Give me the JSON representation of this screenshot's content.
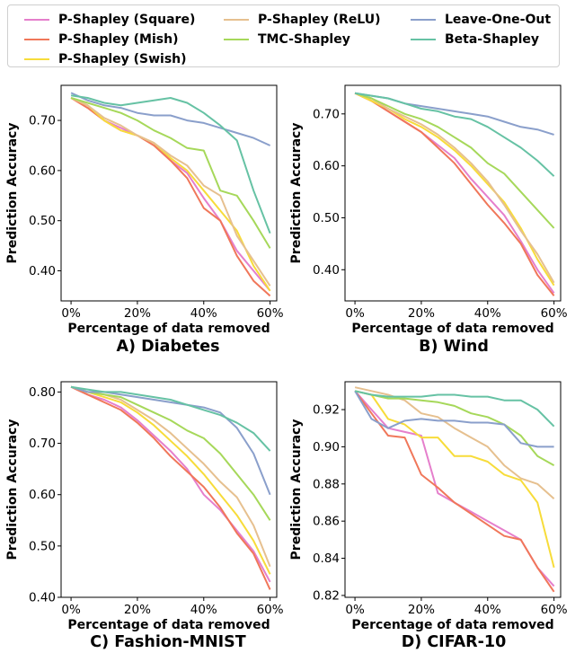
{
  "legend": [
    {
      "name": "P-Shapley (Square)",
      "color": "#e57fcc"
    },
    {
      "name": "P-Shapley (Mish)",
      "color": "#f0775a"
    },
    {
      "name": "P-Shapley (Swish)",
      "color": "#f7dc3a"
    },
    {
      "name": "P-Shapley (ReLU)",
      "color": "#e6c08f"
    },
    {
      "name": "TMC-Shapley",
      "color": "#a6d85a"
    },
    {
      "name": "Leave-One-Out",
      "color": "#8a9fcb"
    },
    {
      "name": "Beta-Shapley",
      "color": "#66c2a4"
    }
  ],
  "captions": [
    "A) Diabetes",
    "B) Wind",
    "C) Fashion-MNIST",
    "D) CIFAR-10"
  ],
  "chart_data": [
    {
      "type": "line",
      "title": "",
      "xlabel": "Percentage of data removed",
      "ylabel": "Prediction Accuracy",
      "x": [
        0,
        5,
        10,
        15,
        20,
        25,
        30,
        35,
        40,
        45,
        50,
        55,
        60
      ],
      "xticks": [
        "0%",
        "20%",
        "40%",
        "60%"
      ],
      "xtick_values": [
        0,
        20,
        40,
        60
      ],
      "yticks": [
        "0.40",
        "0.50",
        "0.60",
        "0.70"
      ],
      "ytick_values": [
        0.4,
        0.5,
        0.6,
        0.7
      ],
      "xlim": [
        -3,
        62
      ],
      "ylim": [
        0.34,
        0.77
      ],
      "series": [
        {
          "name": "P-Shapley (Square)",
          "values": [
            0.745,
            0.73,
            0.7,
            0.685,
            0.67,
            0.655,
            0.62,
            0.595,
            0.545,
            0.5,
            0.44,
            0.4,
            0.36
          ]
        },
        {
          "name": "P-Shapley (Mish)",
          "values": [
            0.745,
            0.725,
            0.7,
            0.68,
            0.67,
            0.65,
            0.62,
            0.585,
            0.525,
            0.5,
            0.43,
            0.38,
            0.35
          ]
        },
        {
          "name": "P-Shapley (Swish)",
          "values": [
            0.745,
            0.73,
            0.7,
            0.68,
            0.67,
            0.655,
            0.625,
            0.6,
            0.56,
            0.52,
            0.48,
            0.41,
            0.36
          ]
        },
        {
          "name": "P-Shapley (ReLU)",
          "values": [
            0.745,
            0.73,
            0.705,
            0.69,
            0.67,
            0.655,
            0.63,
            0.61,
            0.57,
            0.55,
            0.47,
            0.42,
            0.37
          ]
        },
        {
          "name": "TMC-Shapley",
          "values": [
            0.745,
            0.735,
            0.725,
            0.715,
            0.7,
            0.68,
            0.665,
            0.645,
            0.64,
            0.56,
            0.55,
            0.5,
            0.445
          ]
        },
        {
          "name": "Leave-One-Out",
          "values": [
            0.755,
            0.74,
            0.73,
            0.725,
            0.715,
            0.71,
            0.71,
            0.7,
            0.695,
            0.685,
            0.675,
            0.665,
            0.65
          ]
        },
        {
          "name": "Beta-Shapley",
          "values": [
            0.75,
            0.745,
            0.735,
            0.73,
            0.735,
            0.74,
            0.745,
            0.735,
            0.715,
            0.69,
            0.66,
            0.56,
            0.475
          ]
        }
      ]
    },
    {
      "type": "line",
      "title": "",
      "xlabel": "Percentage of data removed",
      "ylabel": "Prediction Accuracy",
      "x": [
        0,
        5,
        10,
        15,
        20,
        25,
        30,
        35,
        40,
        45,
        50,
        55,
        60
      ],
      "xticks": [
        "0%",
        "20%",
        "40%",
        "60%"
      ],
      "xtick_values": [
        0,
        20,
        40,
        60
      ],
      "yticks": [
        "0.40",
        "0.50",
        "0.60",
        "0.70"
      ],
      "ytick_values": [
        0.4,
        0.5,
        0.6,
        0.7
      ],
      "xlim": [
        -3,
        62
      ],
      "ylim": [
        0.34,
        0.755
      ],
      "series": [
        {
          "name": "P-Shapley (Square)",
          "values": [
            0.74,
            0.725,
            0.705,
            0.685,
            0.665,
            0.64,
            0.615,
            0.575,
            0.54,
            0.505,
            0.455,
            0.4,
            0.355
          ]
        },
        {
          "name": "P-Shapley (Mish)",
          "values": [
            0.74,
            0.725,
            0.705,
            0.685,
            0.665,
            0.635,
            0.605,
            0.565,
            0.525,
            0.49,
            0.45,
            0.39,
            0.35
          ]
        },
        {
          "name": "P-Shapley (Swish)",
          "values": [
            0.74,
            0.725,
            0.71,
            0.69,
            0.675,
            0.655,
            0.63,
            0.6,
            0.565,
            0.53,
            0.48,
            0.42,
            0.37
          ]
        },
        {
          "name": "P-Shapley (ReLU)",
          "values": [
            0.74,
            0.73,
            0.71,
            0.695,
            0.68,
            0.66,
            0.635,
            0.605,
            0.57,
            0.525,
            0.475,
            0.43,
            0.375
          ]
        },
        {
          "name": "TMC-Shapley",
          "values": [
            0.74,
            0.73,
            0.715,
            0.7,
            0.69,
            0.675,
            0.655,
            0.635,
            0.605,
            0.585,
            0.55,
            0.515,
            0.48
          ]
        },
        {
          "name": "Leave-One-Out",
          "values": [
            0.74,
            0.735,
            0.73,
            0.72,
            0.715,
            0.71,
            0.705,
            0.7,
            0.695,
            0.685,
            0.675,
            0.67,
            0.66
          ]
        },
        {
          "name": "Beta-Shapley",
          "values": [
            0.74,
            0.735,
            0.73,
            0.72,
            0.71,
            0.705,
            0.695,
            0.69,
            0.675,
            0.655,
            0.635,
            0.61,
            0.58
          ]
        }
      ]
    },
    {
      "type": "line",
      "title": "",
      "xlabel": "Percentage of data removed",
      "ylabel": "Prediction Accuracy",
      "x": [
        0,
        5,
        10,
        15,
        20,
        25,
        30,
        35,
        40,
        45,
        50,
        55,
        60
      ],
      "xticks": [
        "0%",
        "20%",
        "40%",
        "60%"
      ],
      "xtick_values": [
        0,
        20,
        40,
        60
      ],
      "yticks": [
        "0.40",
        "0.50",
        "0.60",
        "0.70",
        "0.80"
      ],
      "ytick_values": [
        0.4,
        0.5,
        0.6,
        0.7,
        0.8
      ],
      "xlim": [
        -3,
        62
      ],
      "ylim": [
        0.4,
        0.82
      ],
      "series": [
        {
          "name": "P-Shapley (Square)",
          "values": [
            0.81,
            0.795,
            0.785,
            0.77,
            0.745,
            0.715,
            0.685,
            0.65,
            0.6,
            0.57,
            0.53,
            0.49,
            0.43
          ]
        },
        {
          "name": "P-Shapley (Mish)",
          "values": [
            0.81,
            0.795,
            0.78,
            0.765,
            0.74,
            0.71,
            0.675,
            0.645,
            0.615,
            0.575,
            0.525,
            0.485,
            0.415
          ]
        },
        {
          "name": "P-Shapley (Swish)",
          "values": [
            0.81,
            0.8,
            0.79,
            0.78,
            0.76,
            0.735,
            0.705,
            0.675,
            0.64,
            0.6,
            0.56,
            0.51,
            0.445
          ]
        },
        {
          "name": "P-Shapley (ReLU)",
          "values": [
            0.81,
            0.8,
            0.795,
            0.785,
            0.765,
            0.745,
            0.72,
            0.69,
            0.66,
            0.625,
            0.595,
            0.54,
            0.46
          ]
        },
        {
          "name": "TMC-Shapley",
          "values": [
            0.81,
            0.8,
            0.795,
            0.79,
            0.775,
            0.76,
            0.745,
            0.725,
            0.71,
            0.68,
            0.64,
            0.6,
            0.55
          ]
        },
        {
          "name": "Leave-One-Out",
          "values": [
            0.81,
            0.8,
            0.8,
            0.795,
            0.79,
            0.785,
            0.78,
            0.775,
            0.77,
            0.76,
            0.73,
            0.68,
            0.6
          ]
        },
        {
          "name": "Beta-Shapley",
          "values": [
            0.81,
            0.805,
            0.8,
            0.8,
            0.795,
            0.79,
            0.785,
            0.775,
            0.765,
            0.755,
            0.74,
            0.72,
            0.685
          ]
        }
      ]
    },
    {
      "type": "line",
      "title": "",
      "xlabel": "Percentage of data removed",
      "ylabel": "Prediction Accuracy",
      "x": [
        0,
        5,
        10,
        15,
        20,
        25,
        30,
        35,
        40,
        45,
        50,
        55,
        60
      ],
      "xticks": [
        "0%",
        "20%",
        "40%",
        "60%"
      ],
      "xtick_values": [
        0,
        20,
        40,
        60
      ],
      "yticks": [
        "0.82",
        "0.84",
        "0.86",
        "0.88",
        "0.90",
        "0.92"
      ],
      "ytick_values": [
        0.82,
        0.84,
        0.86,
        0.88,
        0.9,
        0.92
      ],
      "xlim": [
        -3,
        62
      ],
      "ylim": [
        0.819,
        0.935
      ],
      "series": [
        {
          "name": "P-Shapley (Square)",
          "values": [
            0.93,
            0.92,
            0.91,
            0.908,
            0.906,
            0.875,
            0.87,
            0.865,
            0.86,
            0.855,
            0.85,
            0.835,
            0.825
          ]
        },
        {
          "name": "P-Shapley (Mish)",
          "values": [
            0.93,
            0.918,
            0.906,
            0.905,
            0.885,
            0.878,
            0.87,
            0.864,
            0.858,
            0.852,
            0.85,
            0.835,
            0.822
          ]
        },
        {
          "name": "P-Shapley (Swish)",
          "values": [
            0.93,
            0.928,
            0.915,
            0.912,
            0.905,
            0.905,
            0.895,
            0.895,
            0.892,
            0.885,
            0.882,
            0.87,
            0.835
          ]
        },
        {
          "name": "P-Shapley (ReLU)",
          "values": [
            0.932,
            0.93,
            0.928,
            0.925,
            0.918,
            0.916,
            0.91,
            0.905,
            0.9,
            0.89,
            0.883,
            0.88,
            0.872
          ]
        },
        {
          "name": "TMC-Shapley",
          "values": [
            0.93,
            0.928,
            0.926,
            0.926,
            0.925,
            0.924,
            0.922,
            0.918,
            0.916,
            0.912,
            0.906,
            0.895,
            0.89
          ]
        },
        {
          "name": "Leave-One-Out",
          "values": [
            0.93,
            0.915,
            0.91,
            0.914,
            0.915,
            0.914,
            0.914,
            0.913,
            0.913,
            0.912,
            0.902,
            0.9,
            0.9
          ]
        },
        {
          "name": "Beta-Shapley",
          "values": [
            0.93,
            0.928,
            0.927,
            0.927,
            0.927,
            0.928,
            0.928,
            0.927,
            0.927,
            0.925,
            0.925,
            0.92,
            0.911
          ]
        }
      ]
    }
  ]
}
